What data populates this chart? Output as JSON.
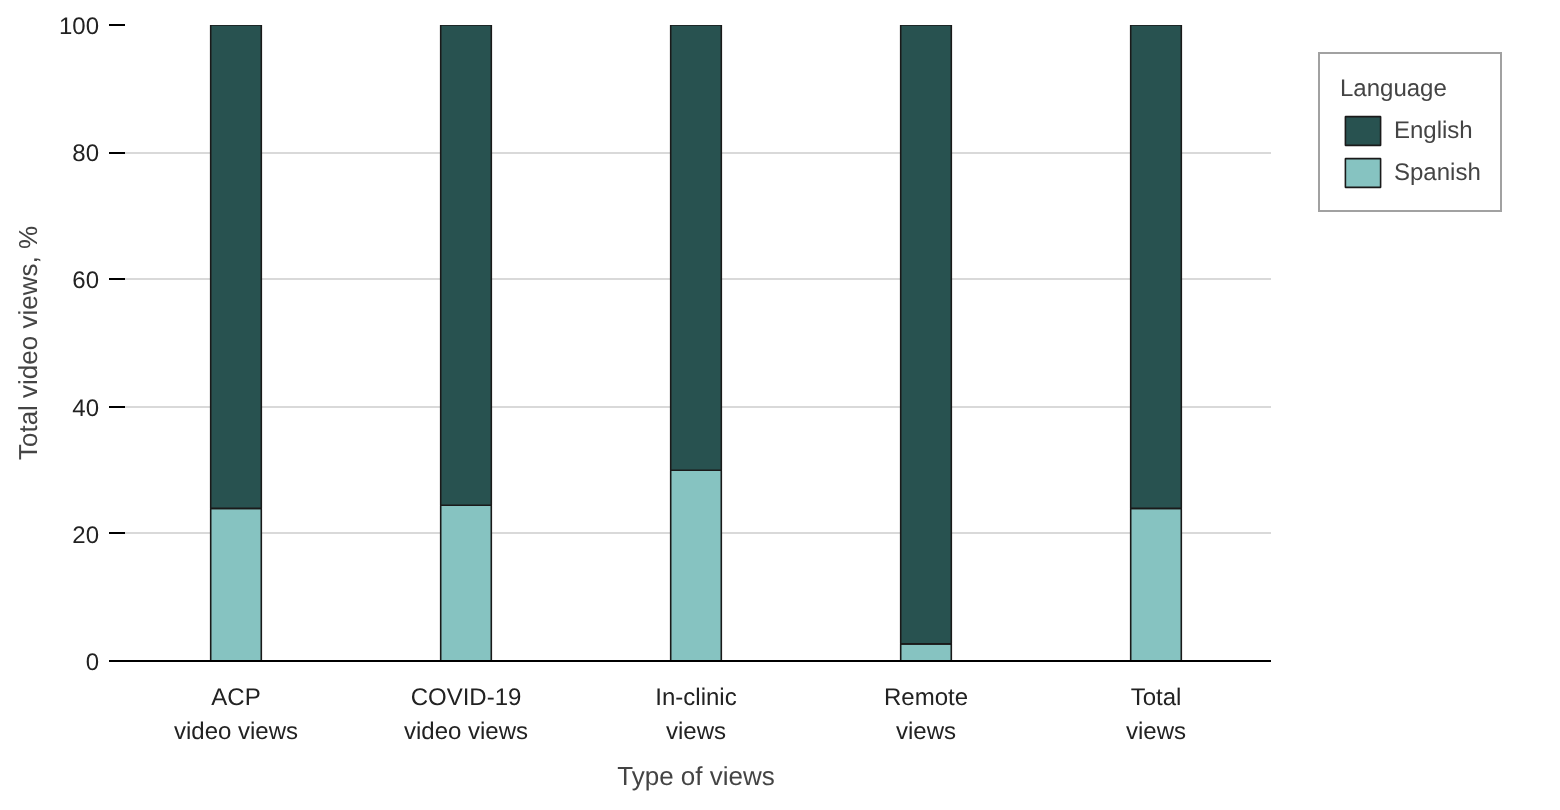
{
  "chart_data": {
    "type": "bar",
    "stacked": true,
    "xlabel": "Type of views",
    "ylabel": "Total video views, %",
    "legend_title": "Language",
    "categories": [
      "ACP\nvideo views",
      "COVID-19\nvideo views",
      "In-clinic\nviews",
      "Remote\nviews",
      "Total\nviews"
    ],
    "series": [
      {
        "name": "Spanish",
        "color": "#86c3c1",
        "values": [
          24,
          24.5,
          30,
          2.7,
          24
        ]
      },
      {
        "name": "English",
        "color": "#285250",
        "values": [
          76,
          75.5,
          70,
          97.3,
          76
        ]
      }
    ],
    "ylim": [
      0,
      100
    ],
    "yticks": [
      0,
      20,
      40,
      60,
      80,
      100
    ],
    "grid": "y",
    "legend": "right"
  }
}
